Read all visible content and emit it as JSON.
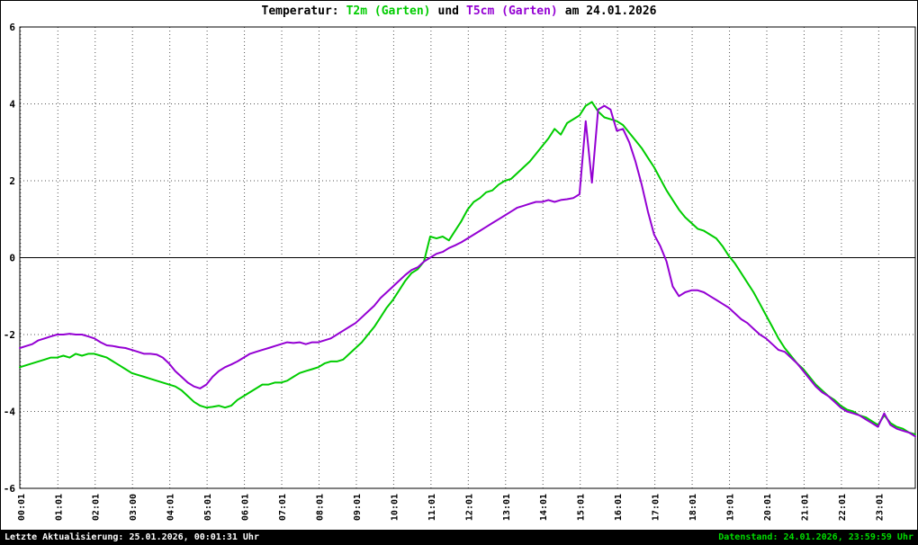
{
  "title": {
    "prefix": "Temperatur:",
    "series1": "T2m (Garten)",
    "connector": "und",
    "series2": "T5cm (Garten)",
    "suffix": "am 24.01.2026"
  },
  "footer": {
    "left": "Letzte Aktualisierung: 25.01.2026, 00:01:31 Uhr",
    "right": "Datenstand: 24.01.2026, 23:59:59 Uhr"
  },
  "colors": {
    "t2m": "#00cc00",
    "t5cm": "#9400d3",
    "grid": "#555555",
    "axis": "#000000",
    "footer_bg": "#000000",
    "footer_left_text": "#ffffff",
    "footer_right_text": "#00dd00"
  },
  "chart_data": {
    "type": "line",
    "title": "Temperatur: T2m (Garten) und T5cm (Garten) am 24.01.2026",
    "xlabel": "",
    "ylabel": "",
    "xlim": [
      0,
      24
    ],
    "ylim": [
      -6,
      6
    ],
    "grid": true,
    "legend_position": "in-title",
    "yticks": [
      -6,
      -4,
      -2,
      0,
      2,
      4,
      6
    ],
    "ytick_labels": [
      "-6",
      "-4",
      "-2",
      "0",
      "2",
      "4",
      "6"
    ],
    "xticks": [
      0.02,
      1.02,
      2.02,
      3.02,
      4.02,
      5.02,
      6.02,
      7.02,
      8.02,
      9.02,
      10.02,
      11.02,
      12.02,
      13.02,
      14.02,
      15.02,
      16.02,
      17.02,
      18.02,
      19.02,
      20.02,
      21.02,
      22.02,
      23.02
    ],
    "xtick_labels": [
      "00:01",
      "01:01",
      "02:01",
      "03:00",
      "04:01",
      "05:01",
      "06:01",
      "07:01",
      "08:01",
      "09:01",
      "10:01",
      "11:01",
      "12:01",
      "13:01",
      "14:01",
      "15:01",
      "16:01",
      "17:01",
      "18:01",
      "19:01",
      "20:01",
      "21:01",
      "22:01",
      "23:01"
    ],
    "series": [
      {
        "name": "T2m (Garten)",
        "color": "#00cc00",
        "x_start_hour": 0,
        "x_step_minutes": 10,
        "values": [
          -2.85,
          -2.8,
          -2.75,
          -2.7,
          -2.65,
          -2.6,
          -2.6,
          -2.55,
          -2.6,
          -2.5,
          -2.55,
          -2.5,
          -2.5,
          -2.55,
          -2.6,
          -2.7,
          -2.8,
          -2.9,
          -3.0,
          -3.05,
          -3.1,
          -3.15,
          -3.2,
          -3.25,
          -3.3,
          -3.35,
          -3.45,
          -3.6,
          -3.75,
          -3.85,
          -3.9,
          -3.88,
          -3.85,
          -3.9,
          -3.85,
          -3.7,
          -3.6,
          -3.5,
          -3.4,
          -3.3,
          -3.3,
          -3.25,
          -3.25,
          -3.2,
          -3.1,
          -3.0,
          -2.95,
          -2.9,
          -2.85,
          -2.75,
          -2.7,
          -2.7,
          -2.65,
          -2.5,
          -2.35,
          -2.2,
          -2.0,
          -1.8,
          -1.55,
          -1.3,
          -1.1,
          -0.85,
          -0.6,
          -0.4,
          -0.3,
          -0.1,
          0.55,
          0.5,
          0.55,
          0.45,
          0.7,
          0.95,
          1.25,
          1.45,
          1.55,
          1.7,
          1.75,
          1.9,
          2.0,
          2.05,
          2.2,
          2.35,
          2.5,
          2.7,
          2.9,
          3.1,
          3.35,
          3.2,
          3.5,
          3.6,
          3.7,
          3.95,
          4.05,
          3.8,
          3.65,
          3.6,
          3.55,
          3.45,
          3.25,
          3.05,
          2.85,
          2.6,
          2.35,
          2.05,
          1.75,
          1.5,
          1.25,
          1.05,
          0.9,
          0.75,
          0.7,
          0.6,
          0.5,
          0.3,
          0.05,
          -0.15,
          -0.4,
          -0.65,
          -0.9,
          -1.2,
          -1.5,
          -1.8,
          -2.1,
          -2.35,
          -2.55,
          -2.75,
          -2.9,
          -3.1,
          -3.3,
          -3.45,
          -3.6,
          -3.7,
          -3.85,
          -3.95,
          -4.0,
          -4.1,
          -4.15,
          -4.25,
          -4.35,
          -4.1,
          -4.3,
          -4.4,
          -4.45,
          -4.55,
          -4.6
        ]
      },
      {
        "name": "T5cm (Garten)",
        "color": "#9400d3",
        "x_start_hour": 0,
        "x_step_minutes": 10,
        "values": [
          -2.35,
          -2.3,
          -2.25,
          -2.15,
          -2.1,
          -2.05,
          -2.0,
          -2.0,
          -1.98,
          -2.0,
          -2.0,
          -2.05,
          -2.1,
          -2.2,
          -2.28,
          -2.3,
          -2.33,
          -2.35,
          -2.4,
          -2.45,
          -2.5,
          -2.5,
          -2.52,
          -2.6,
          -2.75,
          -2.95,
          -3.1,
          -3.25,
          -3.35,
          -3.4,
          -3.3,
          -3.1,
          -2.95,
          -2.85,
          -2.78,
          -2.7,
          -2.6,
          -2.5,
          -2.45,
          -2.4,
          -2.35,
          -2.3,
          -2.25,
          -2.2,
          -2.22,
          -2.2,
          -2.25,
          -2.2,
          -2.2,
          -2.15,
          -2.1,
          -2.0,
          -1.9,
          -1.8,
          -1.7,
          -1.55,
          -1.4,
          -1.25,
          -1.05,
          -0.9,
          -0.75,
          -0.6,
          -0.45,
          -0.32,
          -0.25,
          -0.1,
          0.0,
          0.1,
          0.15,
          0.25,
          0.32,
          0.4,
          0.5,
          0.6,
          0.7,
          0.8,
          0.9,
          1.0,
          1.1,
          1.2,
          1.3,
          1.35,
          1.4,
          1.45,
          1.45,
          1.5,
          1.45,
          1.5,
          1.52,
          1.55,
          1.65,
          3.55,
          1.95,
          3.85,
          3.95,
          3.85,
          3.3,
          3.35,
          3.0,
          2.5,
          1.9,
          1.2,
          0.6,
          0.3,
          -0.1,
          -0.75,
          -1.0,
          -0.9,
          -0.85,
          -0.85,
          -0.9,
          -1.0,
          -1.1,
          -1.2,
          -1.3,
          -1.45,
          -1.6,
          -1.7,
          -1.85,
          -2.0,
          -2.1,
          -2.25,
          -2.4,
          -2.45,
          -2.6,
          -2.75,
          -2.95,
          -3.15,
          -3.35,
          -3.5,
          -3.6,
          -3.75,
          -3.9,
          -4.0,
          -4.05,
          -4.1,
          -4.2,
          -4.3,
          -4.4,
          -4.05,
          -4.35,
          -4.45,
          -4.5,
          -4.55,
          -4.65
        ]
      }
    ]
  }
}
